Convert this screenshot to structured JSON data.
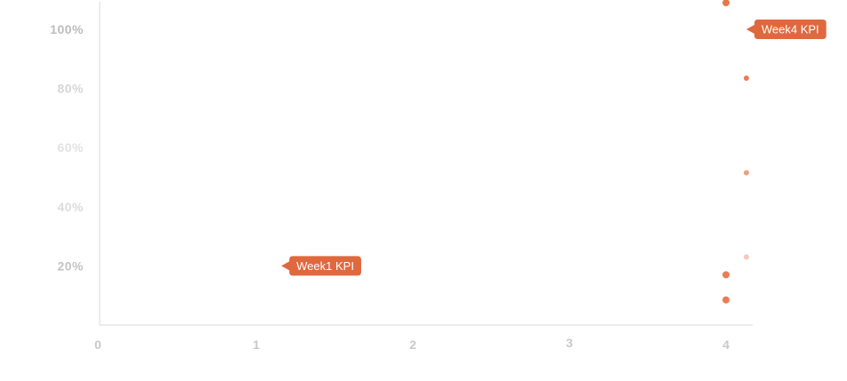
{
  "chart_data": {
    "type": "scatter",
    "x_ticks": [
      "0",
      "1",
      "2",
      "3",
      "4"
    ],
    "y_ticks": [
      "20%",
      "40%",
      "60%",
      "80%",
      "100%"
    ],
    "xlim": [
      0,
      4.2
    ],
    "ylim": [
      0,
      110
    ],
    "grid": false,
    "marker_color": "#e8764a",
    "callout_color": "#e0683f",
    "points": [
      {
        "x": 4.0,
        "y": 109,
        "opacity": 1.0
      },
      {
        "x": 4.13,
        "y": 83.5,
        "opacity": 0.95
      },
      {
        "x": 4.13,
        "y": 51.5,
        "opacity": 0.7
      },
      {
        "x": 4.13,
        "y": 23,
        "opacity": 0.4
      },
      {
        "x": 4.0,
        "y": 17,
        "opacity": 0.95
      },
      {
        "x": 4.0,
        "y": 8.5,
        "opacity": 0.95
      }
    ],
    "annotations": [
      {
        "text": "Week1 KPI",
        "x": 1.16,
        "y": 20
      },
      {
        "text": "Week4 KPI",
        "x": 4.13,
        "y": 100
      }
    ]
  }
}
